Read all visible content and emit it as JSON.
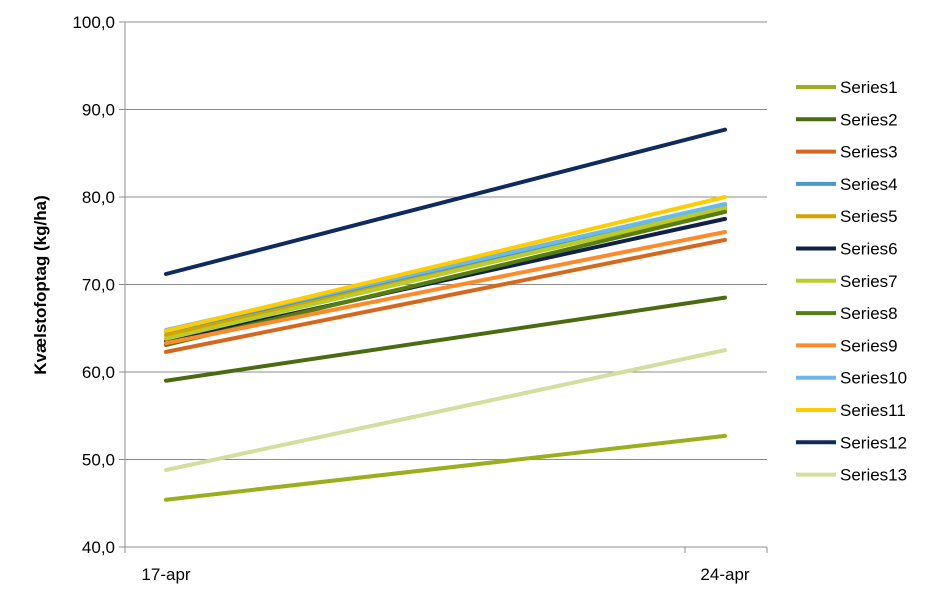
{
  "chart_data": {
    "type": "line",
    "title": "",
    "xlabel": "",
    "ylabel": "Kvælstofoptag (kg/ha)",
    "categories": [
      "17-apr",
      "24-apr"
    ],
    "ylim": [
      40,
      100
    ],
    "yticks": [
      "40,0",
      "50,0",
      "60,0",
      "70,0",
      "80,0",
      "90,0",
      "100,0"
    ],
    "ytick_values": [
      40,
      50,
      60,
      70,
      80,
      90,
      100
    ],
    "grid": true,
    "legend_placement": "right",
    "series": [
      {
        "name": "Series1",
        "color": "#9BAF1E",
        "values": [
          45.4,
          52.7
        ]
      },
      {
        "name": "Series2",
        "color": "#4A6B0F",
        "values": [
          59.0,
          68.5
        ]
      },
      {
        "name": "Series3",
        "color": "#D4681E",
        "values": [
          62.3,
          75.1
        ]
      },
      {
        "name": "Series4",
        "color": "#4A98C9",
        "values": [
          64.6,
          79.0
        ]
      },
      {
        "name": "Series5",
        "color": "#D6A300",
        "values": [
          64.2,
          78.6
        ]
      },
      {
        "name": "Series6",
        "color": "#0F2147",
        "values": [
          63.5,
          77.5
        ]
      },
      {
        "name": "Series7",
        "color": "#B9CC2A",
        "values": [
          63.8,
          78.8
        ]
      },
      {
        "name": "Series8",
        "color": "#557D12",
        "values": [
          63.1,
          78.3
        ]
      },
      {
        "name": "Series9",
        "color": "#FF8A2A",
        "values": [
          63.3,
          76.0
        ]
      },
      {
        "name": "Series10",
        "color": "#6CB8E8",
        "values": [
          64.8,
          79.2
        ]
      },
      {
        "name": "Series11",
        "color": "#FFCC00",
        "values": [
          64.7,
          80.0
        ]
      },
      {
        "name": "Series12",
        "color": "#0E2A5E",
        "values": [
          71.2,
          87.7
        ]
      },
      {
        "name": "Series13",
        "color": "#D3DE9F",
        "values": [
          48.8,
          62.5
        ]
      }
    ]
  }
}
